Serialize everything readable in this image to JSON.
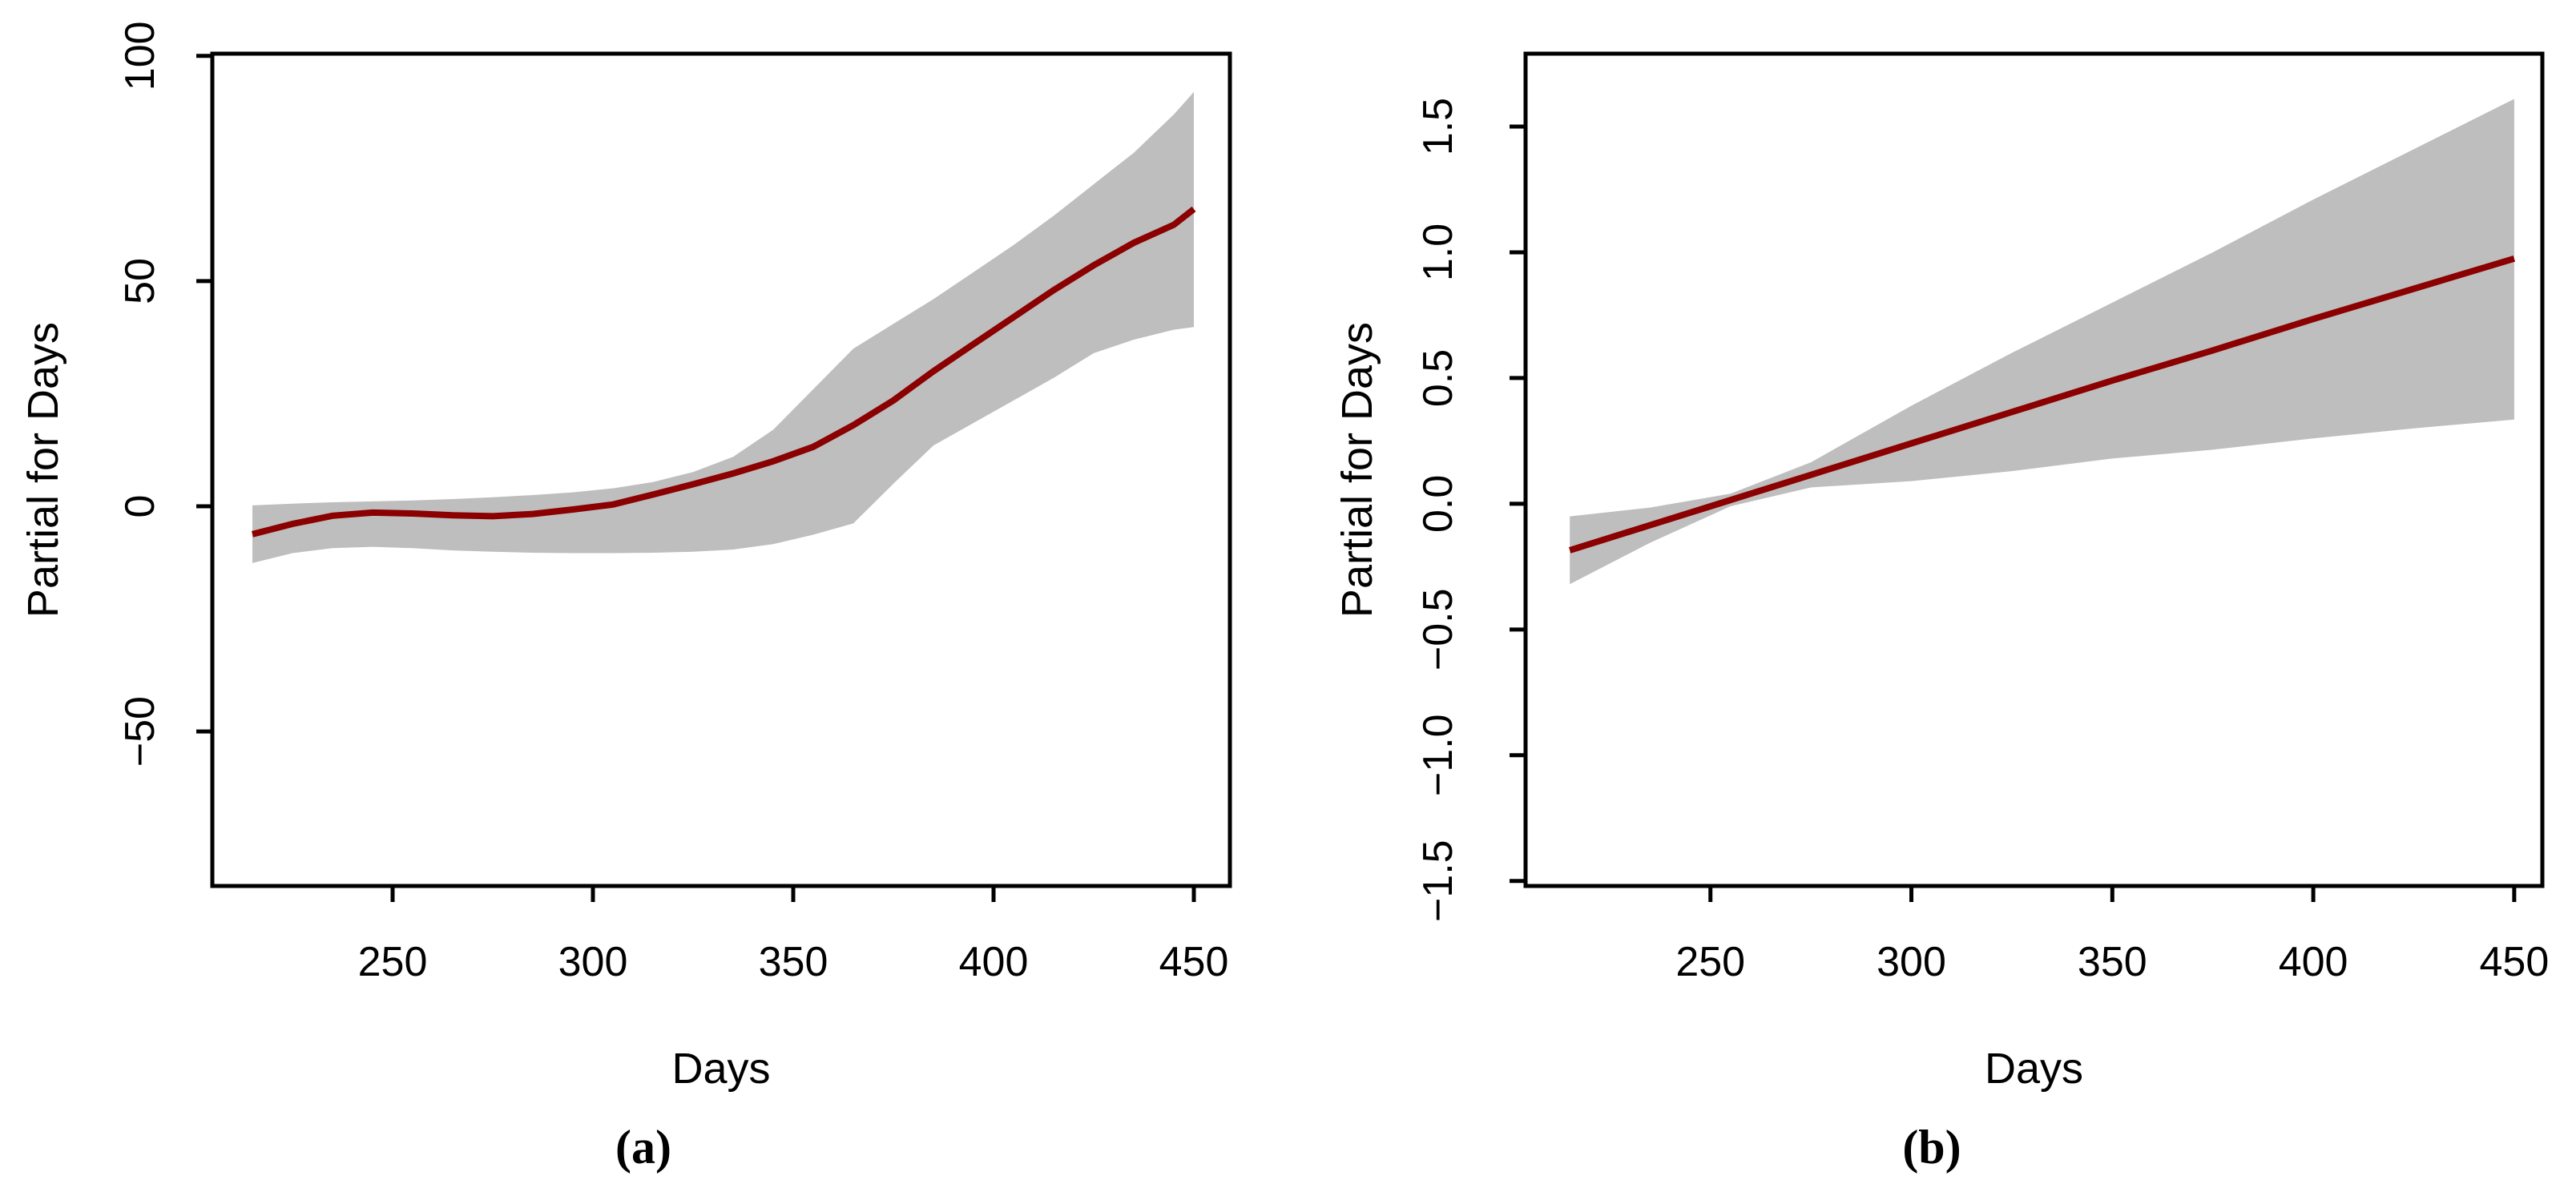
{
  "figure": {
    "background": "#ffffff",
    "axis_color": "#000000",
    "line_color": "#8b0000",
    "band_color": "#bebebe",
    "panels": [
      {
        "id": "a",
        "caption": "(a)",
        "xlabel": "Days",
        "ylabel": "Partial for Days",
        "x_ticks": [
          {
            "label": "250",
            "value": 250
          },
          {
            "label": "300",
            "value": 300
          },
          {
            "label": "350",
            "value": 350
          },
          {
            "label": "400",
            "value": 400
          },
          {
            "label": "450",
            "value": 450
          }
        ],
        "y_ticks": [
          {
            "label": "−50",
            "value": -50
          },
          {
            "label": "0",
            "value": 0
          },
          {
            "label": "50",
            "value": 50
          },
          {
            "label": "100",
            "value": 100
          }
        ]
      },
      {
        "id": "b",
        "caption": "(b)",
        "xlabel": "Days",
        "ylabel": "Partial for Days",
        "x_ticks": [
          {
            "label": "250",
            "value": 250
          },
          {
            "label": "300",
            "value": 300
          },
          {
            "label": "350",
            "value": 350
          },
          {
            "label": "400",
            "value": 400
          },
          {
            "label": "450",
            "value": 450
          }
        ],
        "y_ticks": [
          {
            "label": "−1.5",
            "value": -1.5
          },
          {
            "label": "−1.0",
            "value": -1.0
          },
          {
            "label": "−0.5",
            "value": -0.5
          },
          {
            "label": "0.0",
            "value": 0.0
          },
          {
            "label": "0.5",
            "value": 0.5
          },
          {
            "label": "1.0",
            "value": 1.0
          },
          {
            "label": "1.5",
            "value": 1.5
          }
        ]
      }
    ]
  },
  "chart_data": [
    {
      "type": "line",
      "panel": "a",
      "title": "",
      "xlabel": "Days",
      "ylabel": "Partial for Days",
      "legend": "none",
      "grid": false,
      "xlim": [
        205,
        459
      ],
      "ylim": [
        -84.3,
        100.5
      ],
      "x_tick_values": [
        250,
        300,
        350,
        400,
        450
      ],
      "y_tick_values": [
        -50,
        0,
        50,
        100
      ],
      "line_color": "#8b0000",
      "band_color": "#bebebe",
      "x": [
        215,
        225,
        235,
        245,
        255,
        265,
        275,
        285,
        295,
        305,
        315,
        325,
        335,
        345,
        355,
        365,
        375,
        385,
        395,
        405,
        415,
        425,
        435,
        445,
        450
      ],
      "fit": [
        -6.2,
        -3.9,
        -2.1,
        -1.4,
        -1.6,
        -2.0,
        -2.2,
        -1.7,
        -0.7,
        0.4,
        2.6,
        4.9,
        7.3,
        10.0,
        13.2,
        18.0,
        23.5,
        30.0,
        36.0,
        42.0,
        48.0,
        53.5,
        58.5,
        62.5,
        66.0
      ],
      "upper": [
        0.2,
        0.6,
        0.9,
        1.1,
        1.3,
        1.6,
        2.0,
        2.5,
        3.1,
        4.0,
        5.4,
        7.6,
        11.0,
        17.0,
        26.0,
        35.0,
        40.5,
        46.0,
        52.0,
        58.0,
        64.5,
        71.5,
        78.5,
        87.0,
        92.0
      ],
      "lower": [
        -12.6,
        -10.4,
        -9.3,
        -9.0,
        -9.3,
        -9.8,
        -10.1,
        -10.3,
        -10.4,
        -10.4,
        -10.3,
        -10.1,
        -9.6,
        -8.4,
        -6.3,
        -3.8,
        5.0,
        13.5,
        18.5,
        23.5,
        28.5,
        34.0,
        37.0,
        39.2,
        39.8
      ]
    },
    {
      "type": "line",
      "panel": "b",
      "title": "",
      "xlabel": "Days",
      "ylabel": "Partial for Days",
      "legend": "none",
      "grid": false,
      "xlim": [
        204,
        457
      ],
      "ylim": [
        -1.52,
        1.79
      ],
      "x_tick_values": [
        250,
        300,
        350,
        400,
        450
      ],
      "y_tick_values": [
        -1.5,
        -1.0,
        -0.5,
        0.0,
        0.5,
        1.0,
        1.5
      ],
      "line_color": "#8b0000",
      "band_color": "#bebebe",
      "x": [
        215,
        235,
        255,
        275,
        300,
        325,
        350,
        375,
        400,
        425,
        450
      ],
      "fit": [
        -0.185,
        -0.085,
        0.015,
        0.115,
        0.24,
        0.365,
        0.49,
        0.61,
        0.735,
        0.855,
        0.975
      ],
      "upper": [
        -0.05,
        -0.015,
        0.04,
        0.165,
        0.39,
        0.6,
        0.8,
        1.0,
        1.21,
        1.41,
        1.61
      ],
      "lower": [
        -0.32,
        -0.155,
        -0.01,
        0.065,
        0.09,
        0.13,
        0.18,
        0.215,
        0.26,
        0.3,
        0.335
      ]
    }
  ]
}
